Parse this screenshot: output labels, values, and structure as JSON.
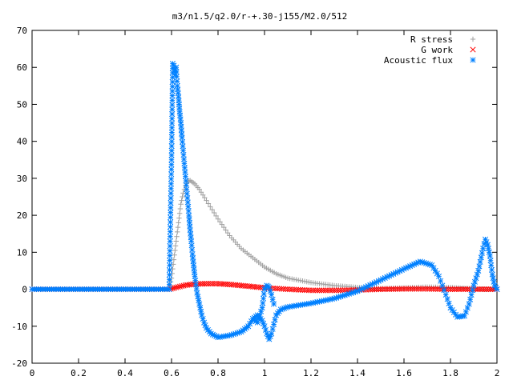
{
  "chart_data": {
    "type": "scatter",
    "title": "m3/n1.5/q2.0/r-+.30-j155/M2.0/512",
    "xlabel": "",
    "ylabel": "",
    "xlim": [
      0,
      2
    ],
    "ylim": [
      -20,
      70
    ],
    "x_ticks": [
      "0",
      "0.2",
      "0.4",
      "0.6",
      "0.8",
      "1",
      "1.2",
      "1.4",
      "1.6",
      "1.8",
      "2"
    ],
    "y_ticks": [
      "-20",
      "-10",
      "0",
      "10",
      "20",
      "30",
      "40",
      "50",
      "60",
      "70"
    ],
    "grid": false,
    "legend_position": "top-right",
    "series": [
      {
        "name": "R stress",
        "marker": "plus",
        "color": "#a0a0a0",
        "points": [
          [
            0,
            0
          ],
          [
            0.3,
            0
          ],
          [
            0.59,
            0
          ],
          [
            0.6,
            3
          ],
          [
            0.61,
            8
          ],
          [
            0.62,
            13
          ],
          [
            0.63,
            18
          ],
          [
            0.64,
            23
          ],
          [
            0.65,
            26
          ],
          [
            0.66,
            28
          ],
          [
            0.67,
            29.2
          ],
          [
            0.68,
            29.4
          ],
          [
            0.7,
            28.5
          ],
          [
            0.72,
            27
          ],
          [
            0.75,
            24
          ],
          [
            0.8,
            19
          ],
          [
            0.85,
            14.5
          ],
          [
            0.9,
            11
          ],
          [
            0.95,
            8.5
          ],
          [
            1.0,
            6
          ],
          [
            1.05,
            4.2
          ],
          [
            1.1,
            3
          ],
          [
            1.2,
            1.8
          ],
          [
            1.3,
            1
          ],
          [
            1.4,
            0.5
          ],
          [
            1.5,
            0.2
          ],
          [
            1.6,
            0.4
          ],
          [
            1.7,
            0.6
          ],
          [
            1.8,
            0.5
          ],
          [
            1.85,
            0.3
          ],
          [
            1.9,
            0.2
          ],
          [
            1.95,
            0
          ],
          [
            2.0,
            0
          ]
        ]
      },
      {
        "name": "G work",
        "marker": "cross",
        "color": "#ff0000",
        "points": [
          [
            0,
            0
          ],
          [
            0.3,
            0
          ],
          [
            0.59,
            0
          ],
          [
            0.62,
            0.5
          ],
          [
            0.66,
            1.1
          ],
          [
            0.7,
            1.4
          ],
          [
            0.75,
            1.5
          ],
          [
            0.8,
            1.5
          ],
          [
            0.85,
            1.3
          ],
          [
            0.9,
            1
          ],
          [
            0.95,
            0.7
          ],
          [
            1.0,
            0.4
          ],
          [
            1.1,
            0
          ],
          [
            1.2,
            -0.3
          ],
          [
            1.3,
            -0.3
          ],
          [
            1.4,
            -0.2
          ],
          [
            1.5,
            0
          ],
          [
            1.6,
            0.1
          ],
          [
            1.7,
            0.1
          ],
          [
            1.8,
            0
          ],
          [
            1.9,
            0
          ],
          [
            2.0,
            0
          ]
        ]
      },
      {
        "name": "Acoustic flux",
        "marker": "star",
        "color": "#0080ff",
        "points": [
          [
            0,
            0
          ],
          [
            0.3,
            0
          ],
          [
            0.59,
            0
          ],
          [
            0.6,
            35
          ],
          [
            0.605,
            61
          ],
          [
            0.61,
            60.5
          ],
          [
            0.615,
            58
          ],
          [
            0.62,
            60
          ],
          [
            0.625,
            55
          ],
          [
            0.63,
            52
          ],
          [
            0.635,
            48
          ],
          [
            0.64,
            45
          ],
          [
            0.645,
            41
          ],
          [
            0.65,
            37.5
          ],
          [
            0.655,
            34
          ],
          [
            0.66,
            30.5
          ],
          [
            0.665,
            27
          ],
          [
            0.67,
            23.5
          ],
          [
            0.675,
            20
          ],
          [
            0.68,
            16
          ],
          [
            0.685,
            13
          ],
          [
            0.69,
            9.5
          ],
          [
            0.695,
            6.5
          ],
          [
            0.7,
            3.5
          ],
          [
            0.71,
            -1
          ],
          [
            0.72,
            -4
          ],
          [
            0.73,
            -7
          ],
          [
            0.74,
            -9
          ],
          [
            0.75,
            -10.5
          ],
          [
            0.77,
            -12
          ],
          [
            0.8,
            -13
          ],
          [
            0.85,
            -12.5
          ],
          [
            0.9,
            -11.5
          ],
          [
            0.93,
            -10
          ],
          [
            0.95,
            -8
          ],
          [
            0.97,
            -7
          ],
          [
            0.99,
            -8.5
          ],
          [
            1.0,
            -10
          ],
          [
            1.01,
            -12
          ],
          [
            1.02,
            -13.5
          ],
          [
            1.03,
            -12
          ],
          [
            1.04,
            -9.5
          ],
          [
            1.05,
            -7
          ],
          [
            1.07,
            -5.5
          ],
          [
            1.1,
            -4.8
          ],
          [
            1.2,
            -3.8
          ],
          [
            1.3,
            -2.5
          ],
          [
            1.4,
            -0.5
          ],
          [
            1.5,
            2.5
          ],
          [
            1.6,
            5.5
          ],
          [
            1.67,
            7.5
          ],
          [
            1.72,
            6.5
          ],
          [
            1.75,
            3.5
          ],
          [
            1.78,
            -1.5
          ],
          [
            1.8,
            -5
          ],
          [
            1.83,
            -7.5
          ],
          [
            1.86,
            -7.2
          ],
          [
            1.88,
            -4
          ],
          [
            1.9,
            1
          ],
          [
            1.92,
            5
          ],
          [
            1.94,
            11
          ],
          [
            1.95,
            13.5
          ],
          [
            1.96,
            12
          ],
          [
            1.97,
            9
          ],
          [
            1.98,
            4
          ],
          [
            1.99,
            1
          ],
          [
            2.0,
            0
          ]
        ]
      },
      {
        "name": "",
        "marker": "star",
        "color": "#0080ff",
        "points": [
          [
            0.95,
            -8
          ],
          [
            0.97,
            -9
          ],
          [
            0.99,
            -5
          ],
          [
            1.0,
            0
          ],
          [
            1.01,
            1
          ],
          [
            1.02,
            0.5
          ],
          [
            1.03,
            -1.5
          ],
          [
            1.04,
            -4
          ]
        ]
      }
    ]
  }
}
